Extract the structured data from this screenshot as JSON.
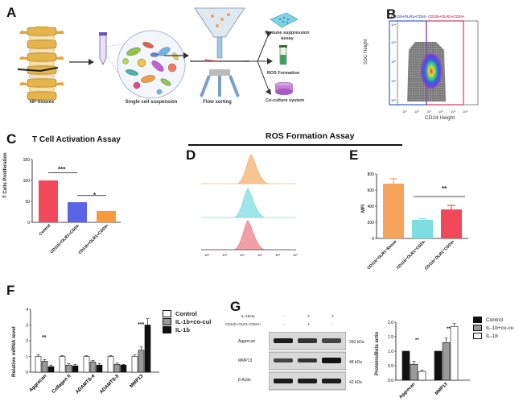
{
  "panel_labels": {
    "a": "A",
    "b": "B",
    "c": "C",
    "d": "D",
    "e": "E",
    "f": "F",
    "g": "G"
  },
  "panel_a": {
    "np_tissues": "NP tissues",
    "single_cell": "Single cell suspension",
    "flow_sorting": "Flow sorting",
    "immune_assay": "Immune suppression assay",
    "ros_formation": "ROS Formation",
    "coculture": "Co-culture system"
  },
  "panel_b": {
    "gate_left": "CD11b+OLR1+CD24-",
    "gate_right": "CD11b+OLR1+CD24+",
    "xlabel": "CD24 Height",
    "ylabel": "SSC Height",
    "xticks": [
      "10⁰",
      "10¹",
      "10²",
      "10³",
      "10⁴",
      "10⁵"
    ],
    "yticks": [
      "10⁰",
      "10¹",
      "10²",
      "10³",
      "10⁴"
    ]
  },
  "panel_c": {
    "title": "T Cell Activation Assay",
    "ylabel": "T Cells Proliferation",
    "yticks": [
      "0",
      "50",
      "100",
      "150"
    ],
    "sig1": "***",
    "sig2": "*"
  },
  "ros_title": "ROS  Formation Assay",
  "panel_d": {
    "xticks": [
      "10²",
      "10³",
      "10⁴",
      "10⁵",
      "10⁶",
      "10⁷"
    ]
  },
  "panel_e": {
    "ylabel": "MFI",
    "yticks": [
      "0",
      "200",
      "400",
      "600",
      "800"
    ],
    "sig": "**"
  },
  "panel_f": {
    "ylabel": "Relative mRNA level",
    "yticks": [
      "0",
      "1",
      "2",
      "3",
      "4"
    ],
    "legend": [
      "Control",
      "IL-1b+co-cul",
      "IL-1b"
    ],
    "sig_aggrecan": "**",
    "sig_mmp13": "***"
  },
  "panel_g": {
    "row_labels": [
      "IL-1beta",
      "CD11b+OLR1+CD24+"
    ],
    "marks_row1": [
      "-",
      "+",
      "+"
    ],
    "marks_row2": [
      "-",
      "+",
      "-"
    ],
    "bands": [
      "Aggrecan",
      "MMP13",
      "β-Actin"
    ],
    "kda": [
      "260 kDa",
      "48 kDa",
      "42 kDa"
    ],
    "ylabel": "Proteins/Beta actin",
    "yticks": [
      "0.0",
      "0.5",
      "1.0",
      "1.5",
      "2.0"
    ],
    "legend": [
      "Control",
      "IL-1b+co-cu",
      "IL-1b"
    ],
    "sig1": "**",
    "sig2": "**"
  },
  "chart_data": [
    {
      "type": "bar",
      "panel": "C",
      "title": "T Cell Activation Assay",
      "ylabel": "T Cells Proliferation",
      "categories": [
        "Control",
        "CD11b+OLR1+CD24-",
        "CD11b+OLR1+CD24+"
      ],
      "values": [
        100,
        48,
        27
      ],
      "ylim": [
        0,
        150
      ],
      "colors": [
        "#f04a5a",
        "#5b63e6",
        "#f79a3c"
      ]
    },
    {
      "type": "area",
      "panel": "D",
      "xscale": "log",
      "series": [
        {
          "values": "peak ~10⁴·²",
          "color": "#f3b26e"
        },
        {
          "values": "peak ~10⁴",
          "color": "#7ddde0"
        },
        {
          "values": "peak ~10⁴",
          "color": "#ef7f88"
        }
      ]
    },
    {
      "type": "bar",
      "panel": "E",
      "ylabel": "MFI",
      "categories": [
        "CD11b⁺OLR1⁺Resue",
        "CD11b⁺OLR1⁺CD24-",
        "CD11b⁺OLR1⁺CD24+"
      ],
      "values": [
        680,
        230,
        360
      ],
      "errors": [
        60,
        15,
        50
      ],
      "ylim": [
        0,
        800
      ],
      "colors": [
        "#f7a35b",
        "#7ddde0",
        "#f04a5a"
      ]
    },
    {
      "type": "bar",
      "panel": "F",
      "ylabel": "Relative mRNA level",
      "categories": [
        "Aggrecan",
        "Collagen II",
        "ADAMTS-4",
        "ADAMTS-5",
        "MMP13"
      ],
      "series": [
        {
          "name": "Control",
          "values": [
            1.0,
            1.0,
            1.0,
            1.0,
            1.0
          ],
          "errors": [
            0.1,
            0.05,
            0.05,
            0.05,
            0.1
          ]
        },
        {
          "name": "IL-1b+co-cul",
          "values": [
            0.7,
            0.45,
            0.65,
            0.5,
            1.4
          ],
          "errors": [
            0.1,
            0.08,
            0.1,
            0.08,
            0.2
          ]
        },
        {
          "name": "IL-1b",
          "values": [
            0.35,
            0.4,
            0.45,
            0.45,
            3.0
          ],
          "errors": [
            0.1,
            0.08,
            0.1,
            0.05,
            0.4
          ]
        }
      ],
      "ylim": [
        0,
        4
      ]
    },
    {
      "type": "bar",
      "panel": "G",
      "ylabel": "Proteins/Beta actin",
      "categories": [
        "Aggrecan",
        "MMP13"
      ],
      "series": [
        {
          "name": "Control",
          "values": [
            1.0,
            1.0
          ]
        },
        {
          "name": "IL-1b+co-cu",
          "values": [
            0.55,
            1.3
          ],
          "errors": [
            0.1,
            0.15
          ]
        },
        {
          "name": "IL-1b",
          "values": [
            0.3,
            1.85
          ],
          "errors": [
            0.05,
            0.1
          ]
        }
      ],
      "ylim": [
        0,
        2.0
      ]
    }
  ],
  "colors": {
    "dark": "#111111",
    "gray": "#9a9a9a",
    "white": "#ffffff"
  }
}
